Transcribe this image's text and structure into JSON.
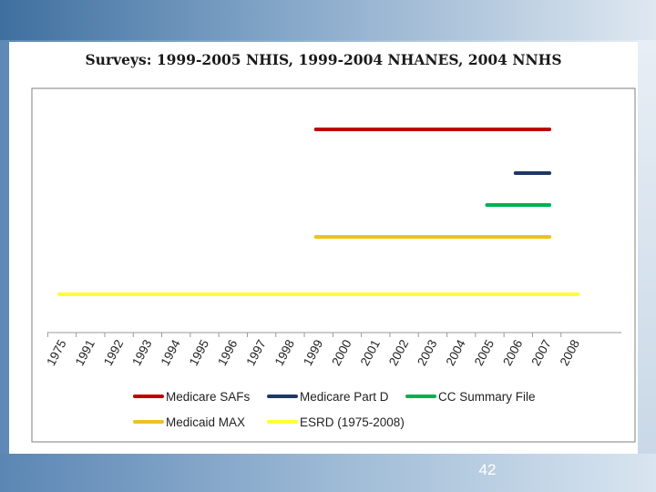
{
  "slide": {
    "number": "42"
  },
  "chart_data": {
    "type": "timeline",
    "title": "Surveys: 1999-2005 NHIS, 1999-2004 NHANES, 2004 NNHS",
    "categories": [
      "1975",
      "1991",
      "1992",
      "1993",
      "1994",
      "1995",
      "1996",
      "1997",
      "1998",
      "1999",
      "2000",
      "2001",
      "2002",
      "2003",
      "2004",
      "2005",
      "2006",
      "2007",
      "2008"
    ],
    "series": [
      {
        "name": "Medicare SAFs",
        "start": "1999",
        "end": "2007",
        "color": "#c00000"
      },
      {
        "name": "Medicare Part D",
        "start": "2006",
        "end": "2007",
        "color": "#1f3864"
      },
      {
        "name": "CC Summary File",
        "start": "2005",
        "end": "2007",
        "color": "#00b050"
      },
      {
        "name": "Medicaid MAX",
        "start": "1999",
        "end": "2007",
        "color": "#f0c020"
      },
      {
        "name": "ESRD (1975-2008)",
        "start": "1975",
        "end": "2008",
        "color": "#ffff33"
      }
    ],
    "legend_position": "bottom",
    "grid": false
  }
}
